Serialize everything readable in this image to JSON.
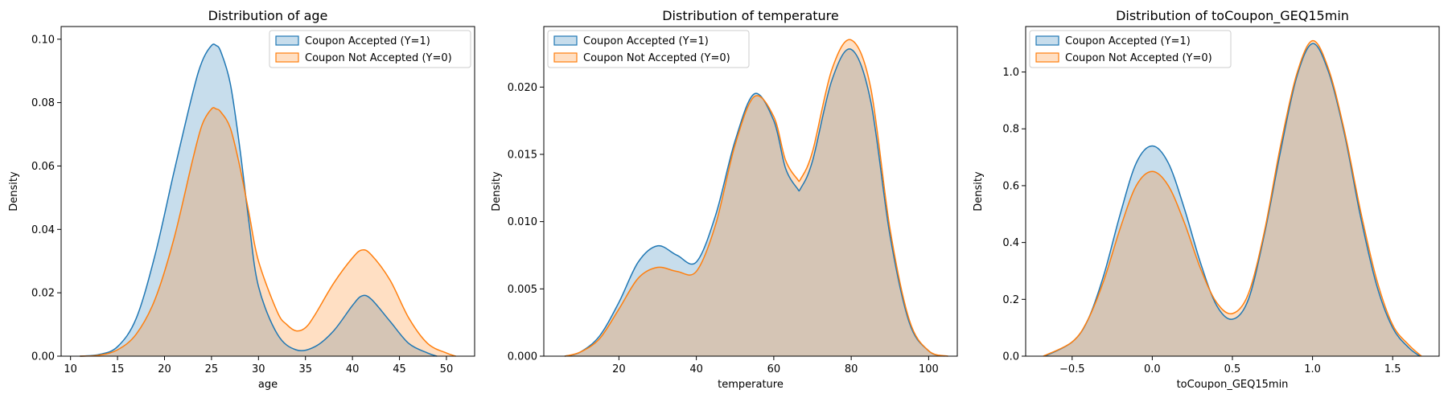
{
  "chart_data": [
    {
      "type": "area",
      "title": "Distribution of age",
      "xlabel": "age",
      "ylabel": "Density",
      "xlim": [
        9,
        53
      ],
      "ylim": [
        0,
        0.104
      ],
      "xticks": [
        10,
        15,
        20,
        25,
        30,
        35,
        40,
        45,
        50
      ],
      "yticks": [
        0.0,
        0.02,
        0.04,
        0.06,
        0.08,
        0.1
      ],
      "xtick_labels": [
        "10",
        "15",
        "20",
        "25",
        "30",
        "35",
        "40",
        "45",
        "50"
      ],
      "ytick_labels": [
        "0.00",
        "0.02",
        "0.04",
        "0.06",
        "0.08",
        "0.10"
      ],
      "legend_position": "top-right",
      "series": [
        {
          "name": "Coupon Accepted (Y=1)",
          "color": "#1f77b4",
          "x": [
            11,
            13,
            15,
            17,
            19,
            21,
            23,
            24,
            25,
            25.5,
            26,
            27,
            28,
            29,
            30,
            32,
            34,
            36,
            38,
            40,
            41,
            42,
            44,
            46,
            48,
            49
          ],
          "y": [
            0.0,
            0.0005,
            0.003,
            0.012,
            0.032,
            0.058,
            0.083,
            0.093,
            0.098,
            0.098,
            0.096,
            0.086,
            0.066,
            0.042,
            0.022,
            0.007,
            0.002,
            0.003,
            0.008,
            0.016,
            0.019,
            0.018,
            0.011,
            0.004,
            0.001,
            0.0
          ]
        },
        {
          "name": "Coupon Not Accepted (Y=0)",
          "color": "#ff7f0e",
          "x": [
            11,
            13,
            15,
            17,
            19,
            21,
            23,
            24,
            25,
            25.5,
            26,
            27,
            28,
            29,
            30,
            32,
            33,
            34,
            35,
            36,
            38,
            40,
            41,
            42,
            44,
            46,
            48,
            50,
            51
          ],
          "y": [
            0.0,
            0.0003,
            0.002,
            0.007,
            0.018,
            0.037,
            0.062,
            0.073,
            0.078,
            0.078,
            0.077,
            0.072,
            0.06,
            0.045,
            0.03,
            0.014,
            0.01,
            0.008,
            0.009,
            0.013,
            0.023,
            0.031,
            0.0335,
            0.032,
            0.024,
            0.012,
            0.004,
            0.001,
            0.0
          ]
        }
      ]
    },
    {
      "type": "area",
      "title": "Distribution of temperature",
      "xlabel": "temperature",
      "ylabel": "Density",
      "xlim": [
        0.6,
        107.4
      ],
      "ylim": [
        0,
        0.0245
      ],
      "xticks": [
        20,
        40,
        60,
        80,
        100
      ],
      "yticks": [
        0.0,
        0.005,
        0.01,
        0.015,
        0.02
      ],
      "xtick_labels": [
        "20",
        "40",
        "60",
        "80",
        "100"
      ],
      "ytick_labels": [
        "0.000",
        "0.005",
        "0.010",
        "0.015",
        "0.020"
      ],
      "legend_position": "top-left",
      "series": [
        {
          "name": "Coupon Accepted (Y=1)",
          "color": "#1f77b4",
          "x": [
            6,
            10,
            15,
            20,
            25,
            30,
            35,
            40,
            45,
            50,
            55,
            60,
            63,
            66,
            67,
            70,
            75,
            80,
            85,
            90,
            95,
            100,
            104
          ],
          "y": [
            0.0,
            0.0003,
            0.0015,
            0.004,
            0.007,
            0.0082,
            0.0075,
            0.007,
            0.0105,
            0.016,
            0.0195,
            0.0175,
            0.014,
            0.0125,
            0.0125,
            0.0145,
            0.0205,
            0.0228,
            0.019,
            0.009,
            0.0025,
            0.0004,
            0.0
          ]
        },
        {
          "name": "Coupon Not Accepted (Y=0)",
          "color": "#ff7f0e",
          "x": [
            6,
            10,
            15,
            20,
            25,
            30,
            35,
            40,
            45,
            50,
            55,
            60,
            63,
            66,
            67,
            70,
            75,
            80,
            85,
            90,
            95,
            100,
            105
          ],
          "y": [
            0.0,
            0.0003,
            0.0013,
            0.0035,
            0.0058,
            0.0066,
            0.0063,
            0.0063,
            0.0098,
            0.0157,
            0.0193,
            0.0178,
            0.0146,
            0.0132,
            0.0132,
            0.0152,
            0.0213,
            0.0235,
            0.02,
            0.0095,
            0.0027,
            0.0004,
            0.0
          ]
        }
      ]
    },
    {
      "type": "area",
      "title": "Distribution of toCoupon_GEQ15min",
      "xlabel": "toCoupon_GEQ15min",
      "ylabel": "Density",
      "xlim": [
        -0.79,
        1.79
      ],
      "ylim": [
        0,
        1.16
      ],
      "xticks": [
        -0.5,
        0.0,
        0.5,
        1.0,
        1.5
      ],
      "yticks": [
        0.0,
        0.2,
        0.4,
        0.6,
        0.8,
        1.0
      ],
      "xtick_labels": [
        "−0.5",
        "0.0",
        "0.5",
        "1.0",
        "1.5"
      ],
      "ytick_labels": [
        "0.0",
        "0.2",
        "0.4",
        "0.6",
        "0.8",
        "1.0"
      ],
      "legend_position": "top-left",
      "series": [
        {
          "name": "Coupon Accepted (Y=1)",
          "color": "#1f77b4",
          "x": [
            -0.67,
            -0.5,
            -0.4,
            -0.3,
            -0.2,
            -0.1,
            0.0,
            0.1,
            0.2,
            0.3,
            0.4,
            0.5,
            0.6,
            0.7,
            0.8,
            0.9,
            1.0,
            1.1,
            1.2,
            1.3,
            1.4,
            1.5,
            1.6,
            1.67
          ],
          "y": [
            0.0,
            0.05,
            0.13,
            0.29,
            0.5,
            0.68,
            0.74,
            0.68,
            0.52,
            0.33,
            0.18,
            0.13,
            0.2,
            0.43,
            0.72,
            0.98,
            1.1,
            1.0,
            0.78,
            0.49,
            0.25,
            0.1,
            0.03,
            0.0
          ]
        },
        {
          "name": "Coupon Not Accepted (Y=0)",
          "color": "#ff7f0e",
          "x": [
            -0.68,
            -0.5,
            -0.4,
            -0.3,
            -0.2,
            -0.1,
            0.0,
            0.1,
            0.2,
            0.3,
            0.4,
            0.5,
            0.6,
            0.7,
            0.8,
            0.9,
            1.0,
            1.1,
            1.2,
            1.3,
            1.4,
            1.5,
            1.6,
            1.68
          ],
          "y": [
            0.0,
            0.05,
            0.13,
            0.27,
            0.45,
            0.6,
            0.65,
            0.6,
            0.47,
            0.31,
            0.19,
            0.15,
            0.22,
            0.44,
            0.74,
            0.99,
            1.11,
            1.01,
            0.79,
            0.51,
            0.27,
            0.11,
            0.04,
            0.0
          ]
        }
      ]
    }
  ]
}
